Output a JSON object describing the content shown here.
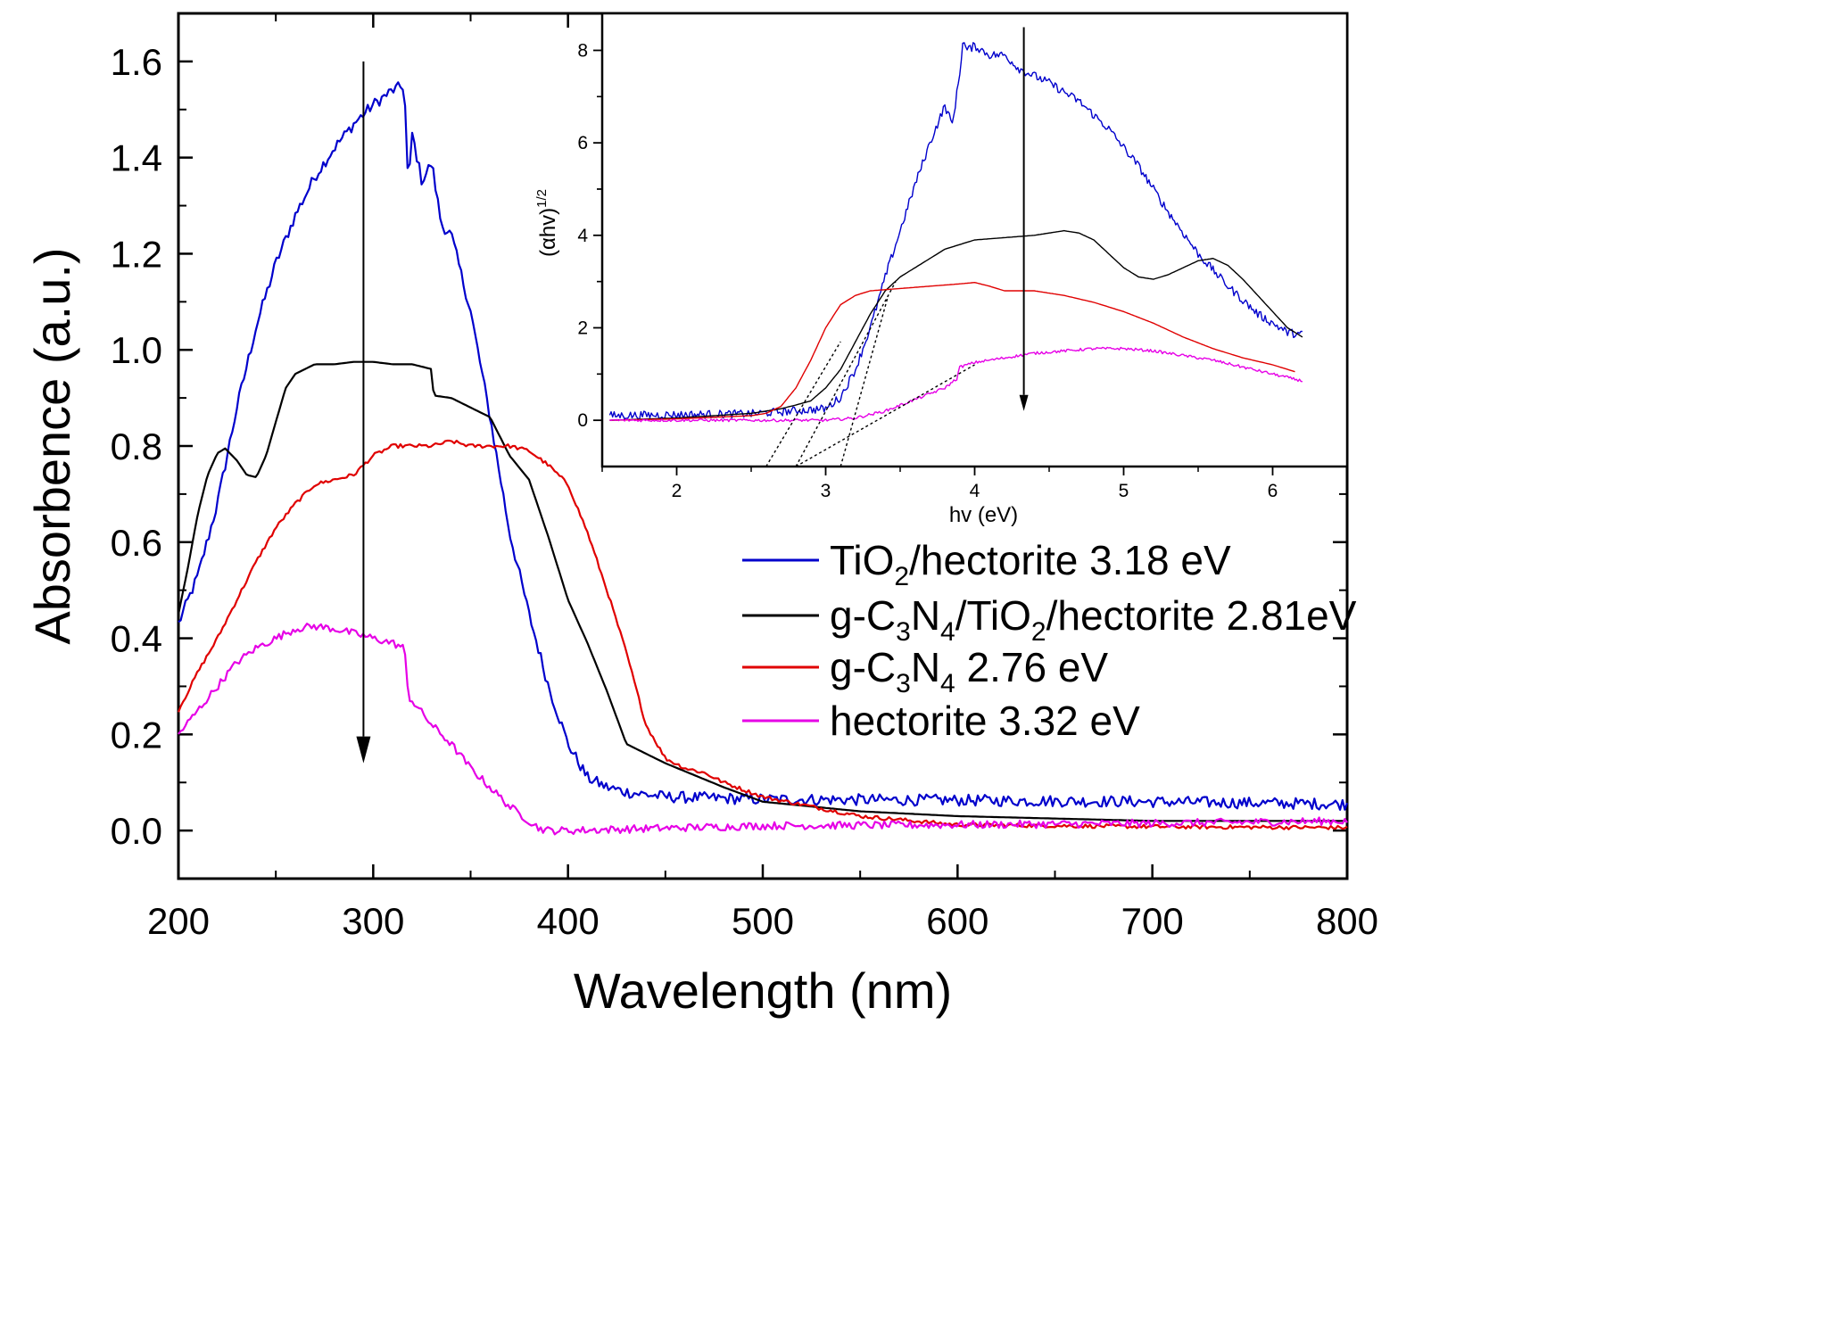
{
  "chart_data": [
    {
      "type": "line",
      "role": "main",
      "title": "",
      "xlabel": "Wavelength (nm)",
      "ylabel": "Absorbence (a.u.)",
      "xlim": [
        200,
        800
      ],
      "ylim": [
        -0.1,
        1.7
      ],
      "xticks": [
        200,
        300,
        400,
        500,
        600,
        700,
        800
      ],
      "yticks": [
        0.0,
        0.2,
        0.4,
        0.6,
        0.8,
        1.0,
        1.2,
        1.4,
        1.6
      ],
      "ytick_labels": [
        "0.0",
        "0.2",
        "0.4",
        "0.6",
        "0.8",
        "1.0",
        "1.2",
        "1.4",
        "1.6"
      ],
      "grid": false,
      "legend_position": "middle-right",
      "arrow": {
        "x": 295,
        "from_y": 1.6,
        "to_y": 0.14
      },
      "series": [
        {
          "name": "TiO2/hectorite 3.18 eV",
          "legend": {
            "pre": "TiO",
            "sub": "2",
            "post": "/hectorite 3.18 eV"
          },
          "color": "#0000cc",
          "noise": 0.012,
          "x": [
            200,
            210,
            220,
            230,
            240,
            250,
            260,
            270,
            280,
            290,
            300,
            310,
            316,
            318,
            320,
            325,
            330,
            335,
            340,
            350,
            360,
            370,
            380,
            390,
            400,
            410,
            420,
            430,
            450,
            500,
            600,
            700,
            800
          ],
          "y": [
            0.43,
            0.53,
            0.68,
            0.88,
            1.05,
            1.18,
            1.28,
            1.36,
            1.42,
            1.47,
            1.51,
            1.54,
            1.55,
            1.33,
            1.45,
            1.35,
            1.39,
            1.26,
            1.24,
            1.08,
            0.86,
            0.62,
            0.45,
            0.3,
            0.18,
            0.11,
            0.09,
            0.08,
            0.07,
            0.065,
            0.063,
            0.06,
            0.055
          ]
        },
        {
          "name": "g-C3N4/TiO2/hectorite 2.81eV",
          "legend": {
            "pre": "g-C",
            "sub": "3",
            "mid": "N",
            "sub2": "4",
            "mid2": "/TiO",
            "sub3": "2",
            "post": "/hectorite 2.81eV"
          },
          "color": "#000000",
          "noise": 0.0,
          "x": [
            200,
            205,
            210,
            215,
            220,
            224,
            230,
            235,
            240,
            245,
            250,
            255,
            260,
            270,
            280,
            290,
            300,
            310,
            320,
            330,
            331,
            340,
            350,
            360,
            365,
            370,
            380,
            390,
            400,
            410,
            420,
            430,
            450,
            480,
            500,
            550,
            600,
            700,
            800
          ],
          "y": [
            0.45,
            0.55,
            0.66,
            0.74,
            0.785,
            0.795,
            0.77,
            0.74,
            0.735,
            0.78,
            0.85,
            0.92,
            0.95,
            0.97,
            0.97,
            0.975,
            0.975,
            0.97,
            0.97,
            0.96,
            0.905,
            0.9,
            0.88,
            0.86,
            0.82,
            0.78,
            0.73,
            0.61,
            0.48,
            0.39,
            0.29,
            0.18,
            0.14,
            0.09,
            0.06,
            0.04,
            0.03,
            0.02,
            0.02
          ]
        },
        {
          "name": "g-C3N4 2.76 eV",
          "legend": {
            "pre": "g-C",
            "sub": "3",
            "mid": "N",
            "sub2": "4",
            "post": " 2.76 eV"
          },
          "color": "#e00000",
          "noise": 0.004,
          "x": [
            200,
            210,
            220,
            230,
            240,
            250,
            260,
            270,
            280,
            290,
            300,
            310,
            320,
            330,
            340,
            350,
            360,
            370,
            380,
            390,
            400,
            405,
            410,
            420,
            430,
            440,
            450,
            460,
            470,
            480,
            500,
            550,
            600,
            700,
            800
          ],
          "y": [
            0.25,
            0.33,
            0.4,
            0.48,
            0.56,
            0.63,
            0.68,
            0.72,
            0.73,
            0.74,
            0.78,
            0.8,
            0.8,
            0.8,
            0.81,
            0.8,
            0.8,
            0.8,
            0.79,
            0.76,
            0.72,
            0.67,
            0.62,
            0.5,
            0.37,
            0.22,
            0.15,
            0.13,
            0.12,
            0.1,
            0.07,
            0.03,
            0.012,
            0.008,
            0.006
          ]
        },
        {
          "name": "hectorite 3.32 eV",
          "legend": {
            "pre": "hectorite 3.32 eV"
          },
          "color": "#e600e6",
          "noise": 0.008,
          "x": [
            200,
            210,
            220,
            230,
            240,
            250,
            260,
            270,
            280,
            290,
            300,
            310,
            316,
            318,
            330,
            340,
            350,
            360,
            370,
            380,
            385,
            390,
            400,
            450,
            500,
            600,
            700,
            800
          ],
          "y": [
            0.2,
            0.25,
            0.3,
            0.35,
            0.38,
            0.4,
            0.42,
            0.425,
            0.42,
            0.41,
            0.4,
            0.39,
            0.38,
            0.28,
            0.22,
            0.18,
            0.13,
            0.09,
            0.05,
            0.02,
            0.005,
            0.0,
            0.0,
            0.005,
            0.01,
            0.012,
            0.015,
            0.02
          ]
        }
      ]
    },
    {
      "type": "line",
      "role": "inset",
      "title": "",
      "xlabel": "hv (eV)",
      "ylabel": {
        "pre": "(αhv)",
        "sup": "1/2"
      },
      "xlim": [
        1.5,
        6.5
      ],
      "ylim": [
        -1.0,
        8.8
      ],
      "xticks": [
        2,
        3,
        4,
        5,
        6
      ],
      "yticks": [
        0,
        2,
        4,
        6,
        8
      ],
      "grid": false,
      "arrow": {
        "x": 4.33,
        "from_y": 8.5,
        "to_y": 0.2
      },
      "series": [
        {
          "name": "TiO2/hectorite",
          "color": "#0000cc",
          "noise": 0.09,
          "x": [
            1.55,
            2.0,
            2.5,
            3.0,
            3.1,
            3.2,
            3.3,
            3.4,
            3.5,
            3.6,
            3.7,
            3.8,
            3.85,
            3.9,
            3.92,
            3.95,
            4.0,
            4.1,
            4.2,
            4.3,
            4.5,
            4.7,
            4.9,
            5.1,
            5.3,
            5.5,
            5.7,
            5.9,
            6.1,
            6.2
          ],
          "y": [
            0.1,
            0.12,
            0.14,
            0.25,
            0.5,
            1.1,
            2.0,
            3.1,
            4.1,
            5.1,
            6.0,
            6.8,
            6.4,
            7.5,
            8.2,
            8.0,
            8.1,
            7.9,
            7.9,
            7.6,
            7.3,
            6.9,
            6.3,
            5.5,
            4.5,
            3.6,
            2.9,
            2.3,
            1.9,
            1.85
          ]
        },
        {
          "name": "g-C3N4/TiO2/hectorite",
          "color": "#000000",
          "noise": 0.0,
          "x": [
            1.55,
            2.0,
            2.5,
            2.7,
            2.8,
            2.9,
            3.0,
            3.1,
            3.2,
            3.3,
            3.4,
            3.5,
            3.6,
            3.8,
            4.0,
            4.2,
            4.4,
            4.6,
            4.7,
            4.8,
            4.9,
            5.0,
            5.1,
            5.2,
            5.3,
            5.4,
            5.5,
            5.6,
            5.7,
            5.8,
            5.9,
            6.0,
            6.1,
            6.2
          ],
          "y": [
            0.0,
            0.05,
            0.15,
            0.25,
            0.33,
            0.42,
            0.7,
            1.1,
            1.7,
            2.3,
            2.8,
            3.1,
            3.3,
            3.7,
            3.9,
            3.95,
            4.0,
            4.1,
            4.05,
            3.9,
            3.6,
            3.3,
            3.1,
            3.05,
            3.15,
            3.3,
            3.45,
            3.5,
            3.35,
            3.05,
            2.7,
            2.35,
            2.0,
            1.8
          ]
        },
        {
          "name": "g-C3N4",
          "color": "#e00000",
          "noise": 0.0,
          "x": [
            1.55,
            2.0,
            2.5,
            2.6,
            2.7,
            2.8,
            2.9,
            3.0,
            3.1,
            3.2,
            3.3,
            3.5,
            3.7,
            3.9,
            4.0,
            4.1,
            4.2,
            4.4,
            4.6,
            4.8,
            5.0,
            5.2,
            5.4,
            5.6,
            5.8,
            6.0,
            6.15
          ],
          "y": [
            0.0,
            0.03,
            0.1,
            0.15,
            0.3,
            0.7,
            1.3,
            2.0,
            2.5,
            2.7,
            2.8,
            2.85,
            2.9,
            2.95,
            2.98,
            2.9,
            2.8,
            2.8,
            2.7,
            2.55,
            2.35,
            2.1,
            1.8,
            1.55,
            1.35,
            1.2,
            1.05
          ]
        },
        {
          "name": "hectorite",
          "color": "#e600e6",
          "noise": 0.03,
          "x": [
            1.55,
            2.0,
            2.5,
            3.0,
            3.2,
            3.4,
            3.6,
            3.8,
            3.88,
            3.9,
            4.0,
            4.2,
            4.4,
            4.6,
            4.8,
            5.0,
            5.2,
            5.4,
            5.6,
            5.8,
            6.0,
            6.2
          ],
          "y": [
            0.0,
            0.0,
            0.0,
            0.0,
            0.05,
            0.2,
            0.45,
            0.7,
            0.9,
            1.15,
            1.25,
            1.35,
            1.45,
            1.5,
            1.55,
            1.55,
            1.5,
            1.4,
            1.3,
            1.15,
            1.0,
            0.85
          ]
        }
      ],
      "tangent_lines": [
        {
          "x": [
            2.6,
            3.1
          ],
          "y": [
            -1.0,
            1.7
          ]
        },
        {
          "x": [
            2.8,
            3.47
          ],
          "y": [
            -1.0,
            3.0
          ]
        },
        {
          "x": [
            3.1,
            3.42
          ],
          "y": [
            -1.0,
            2.7
          ]
        },
        {
          "x": [
            2.8,
            4.0
          ],
          "y": [
            -1.0,
            1.2
          ]
        }
      ]
    }
  ]
}
